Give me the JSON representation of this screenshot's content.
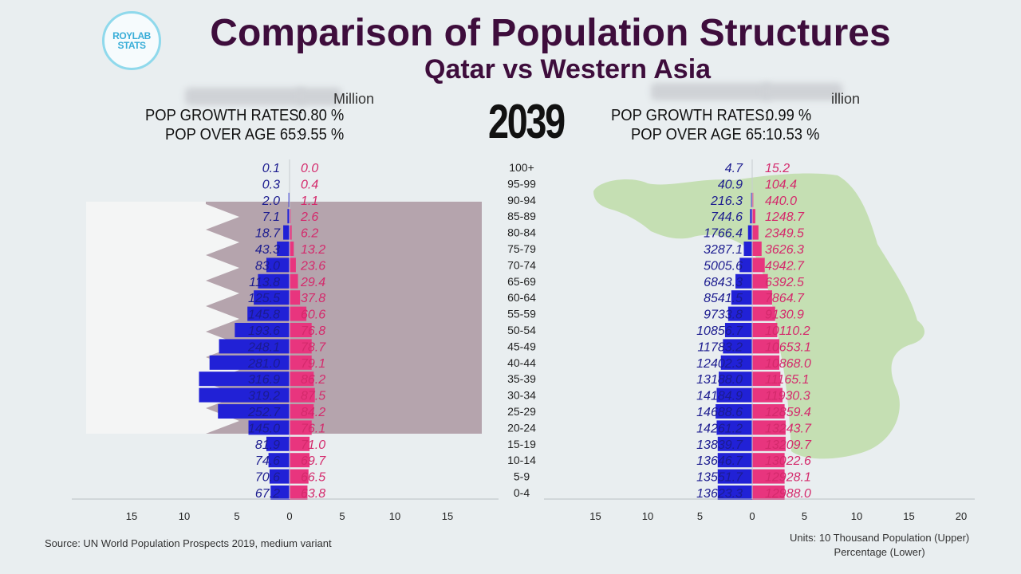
{
  "header": {
    "logo_text": "ROYLAB STATS",
    "title": "Comparison of Population Structures",
    "subtitle": "Qatar vs Western Asia",
    "year": "2039"
  },
  "left_stats": {
    "blurred_tail": "Million",
    "growth_label": "POP GROWTH RATES:",
    "growth_value": "0.80 %",
    "over65_label": "POP OVER AGE 65:",
    "over65_value": "9.55 %"
  },
  "right_stats": {
    "blurred_tail": "illion",
    "growth_label": "POP GROWTH RATES:",
    "growth_value": "0.99 %",
    "over65_label": "POP OVER AGE 65:",
    "over65_value": "10.53 %"
  },
  "footer": {
    "source": "Source: UN World Population Prospects 2019, medium variant",
    "units_line1": "Units: 10 Thousand Population (Upper)",
    "units_line2": "Percentage (Lower)"
  },
  "colors": {
    "male": "#2121d6",
    "female": "#e8357e",
    "male_text": "#1c1c8f",
    "female_text": "#d42a6c",
    "flag_maroon": "#b5a4ad",
    "map_green": "#c5dfb3"
  },
  "chart_data": [
    {
      "type": "bar",
      "name": "Qatar",
      "orientation": "horizontal-pyramid",
      "categories": [
        "100+",
        "95-99",
        "90-94",
        "85-89",
        "80-84",
        "75-79",
        "70-74",
        "65-69",
        "60-64",
        "55-59",
        "50-54",
        "45-49",
        "40-44",
        "35-39",
        "30-34",
        "25-29",
        "20-24",
        "15-19",
        "10-14",
        "5-9",
        "0-4"
      ],
      "series": [
        {
          "name": "Male",
          "side": "left",
          "values": [
            0.1,
            0.3,
            2.0,
            7.1,
            18.7,
            43.3,
            83.0,
            113.8,
            125.5,
            145.8,
            193.6,
            248.1,
            281.0,
            316.9,
            319.2,
            252.7,
            145.0,
            81.9,
            74.6,
            70.6,
            67.2
          ],
          "labels": [
            "0.1",
            "0.3",
            "2.0",
            "7.1",
            "18.7",
            "43.3",
            "83.0",
            "113.8",
            "125.5",
            "145.8",
            "193.6",
            "248.1",
            "281.0",
            "316.9",
            "319.2",
            "252.7",
            "145.0",
            "81.9",
            "74.6",
            "70.6",
            "67.2"
          ],
          "percent": [
            0.0,
            0.0,
            0.1,
            0.2,
            0.6,
            1.2,
            2.2,
            3.0,
            3.4,
            4.0,
            5.2,
            6.7,
            7.6,
            8.6,
            8.6,
            6.8,
            3.9,
            2.2,
            2.0,
            1.9,
            1.8
          ]
        },
        {
          "name": "Female",
          "side": "right",
          "values": [
            0.0,
            0.4,
            1.1,
            2.6,
            6.2,
            13.2,
            23.6,
            29.4,
            37.8,
            60.6,
            76.8,
            78.7,
            79.1,
            86.2,
            87.5,
            84.2,
            76.1,
            71.0,
            69.7,
            66.5,
            63.8
          ],
          "labels": [
            "0.0",
            "0.4",
            "1.1",
            "2.6",
            "6.2",
            "13.2",
            "23.6",
            "29.4",
            "37.8",
            "60.6",
            "76.8",
            "78.7",
            "79.1",
            "86.2",
            "87.5",
            "84.2",
            "76.1",
            "71.0",
            "69.7",
            "66.5",
            "63.8"
          ],
          "percent": [
            0.0,
            0.0,
            0.0,
            0.1,
            0.2,
            0.4,
            0.6,
            0.8,
            1.0,
            1.6,
            2.1,
            2.1,
            2.1,
            2.3,
            2.4,
            2.3,
            2.1,
            1.9,
            1.9,
            1.8,
            1.7
          ]
        }
      ],
      "xticks": [
        "15",
        "10",
        "5",
        "0",
        "5",
        "10",
        "15"
      ],
      "xtick_values": [
        -15,
        -10,
        -5,
        0,
        5,
        10,
        15
      ],
      "xlim": [
        -15,
        15
      ]
    },
    {
      "type": "bar",
      "name": "Western Asia",
      "orientation": "horizontal-pyramid",
      "categories": [
        "100+",
        "95-99",
        "90-94",
        "85-89",
        "80-84",
        "75-79",
        "70-74",
        "65-69",
        "60-64",
        "55-59",
        "50-54",
        "45-49",
        "40-44",
        "35-39",
        "30-34",
        "25-29",
        "20-24",
        "15-19",
        "10-14",
        "5-9",
        "0-4"
      ],
      "series": [
        {
          "name": "Male",
          "side": "left",
          "values": [
            4.7,
            40.9,
            216.3,
            744.6,
            1766.4,
            3287.1,
            5005.6,
            6843.3,
            8541.5,
            9733.8,
            10856.7,
            11783.2,
            12402.3,
            13188.0,
            14184.9,
            14688.6,
            14261.2,
            13839.7,
            13646.7,
            13551.7,
            13623.3
          ],
          "labels": [
            "4.7",
            "40.9",
            "216.3",
            "744.6",
            "1766.4",
            "3287.1",
            "5005.6",
            "6843.3",
            "8541.5",
            "9733.8",
            "10856.7",
            "11783.2",
            "12402.3",
            "13188.0",
            "14184.9",
            "14688.6",
            "14261.2",
            "13839.7",
            "13646.7",
            "13551.7",
            "13623.3"
          ],
          "percent": [
            0.0,
            0.0,
            0.1,
            0.2,
            0.4,
            0.8,
            1.2,
            1.6,
            2.0,
            2.3,
            2.6,
            2.8,
            3.0,
            3.2,
            3.4,
            3.5,
            3.4,
            3.3,
            3.3,
            3.3,
            3.3
          ]
        },
        {
          "name": "Female",
          "side": "right",
          "values": [
            15.2,
            104.4,
            440.0,
            1248.7,
            2349.5,
            3626.3,
            4942.7,
            6392.5,
            7864.7,
            9130.9,
            10110.2,
            10653.1,
            10868.0,
            11165.1,
            11930.3,
            12859.4,
            13243.7,
            13209.7,
            13022.6,
            12928.1,
            12988.0
          ],
          "labels": [
            "15.2",
            "104.4",
            "440.0",
            "1248.7",
            "2349.5",
            "3626.3",
            "4942.7",
            "6392.5",
            "7864.7",
            "9130.9",
            "10110.2",
            "10653.1",
            "10868.0",
            "11165.1",
            "11930.3",
            "12859.4",
            "13243.7",
            "13209.7",
            "13022.6",
            "12928.1",
            "12988.0"
          ],
          "percent": [
            0.0,
            0.0,
            0.1,
            0.3,
            0.6,
            0.9,
            1.2,
            1.5,
            1.9,
            2.2,
            2.4,
            2.6,
            2.6,
            2.7,
            2.9,
            3.1,
            3.2,
            3.2,
            3.1,
            3.1,
            3.1
          ]
        }
      ],
      "xticks": [
        "15",
        "10",
        "5",
        "0",
        "5",
        "10",
        "15",
        "20"
      ],
      "xtick_values": [
        -15,
        -10,
        -5,
        0,
        5,
        10,
        15,
        20
      ],
      "xlim": [
        -15,
        20
      ]
    }
  ]
}
